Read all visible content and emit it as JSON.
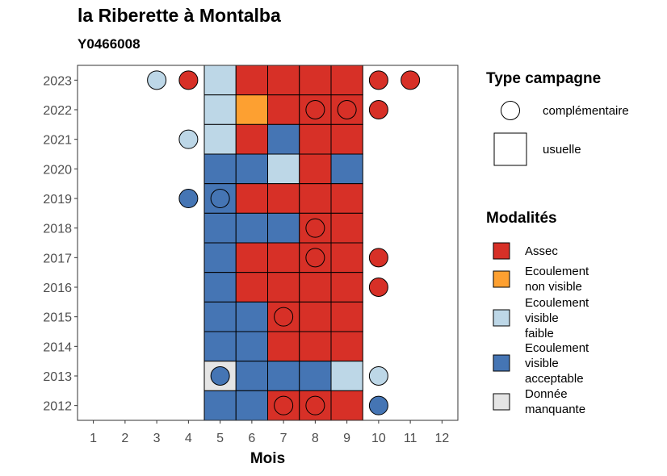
{
  "chart_data": {
    "type": "heatmap",
    "title": "la Riberette à Montalba",
    "subtitle": "Y0466008",
    "xlabel": "Mois",
    "ylabel": "",
    "x_ticks": [
      "1",
      "2",
      "3",
      "4",
      "5",
      "6",
      "7",
      "8",
      "9",
      "10",
      "11",
      "12"
    ],
    "y_ticks": [
      "2023",
      "2022",
      "2021",
      "2020",
      "2019",
      "2018",
      "2017",
      "2016",
      "2015",
      "2014",
      "2013",
      "2012"
    ],
    "xlim": [
      0.5,
      12.5
    ],
    "ylim": [
      2011.5,
      2023.5
    ],
    "legend_campagne": {
      "title": "Type campagne",
      "items": [
        {
          "key": "complementaire",
          "label": "complémentaire",
          "shape": "circle"
        },
        {
          "key": "usuelle",
          "label": "usuelle",
          "shape": "square"
        }
      ]
    },
    "legend_modalites": {
      "title": "Modalités",
      "items": [
        {
          "key": "assec",
          "lines": [
            "Assec"
          ],
          "color": "#D73027"
        },
        {
          "key": "ecoulement_non_visible",
          "lines": [
            "Ecoulement",
            "non visible"
          ],
          "color": "#FDA031"
        },
        {
          "key": "ecoulement_visible_faible",
          "lines": [
            "Ecoulement",
            "visible",
            "faible"
          ],
          "color": "#BDD7E7"
        },
        {
          "key": "ecoulement_visible_acceptable",
          "lines": [
            "Ecoulement",
            "visible",
            "acceptable"
          ],
          "color": "#4575B4"
        },
        {
          "key": "donnee_manquante",
          "lines": [
            "Donnée",
            "manquante"
          ],
          "color": "#E5E5E5"
        }
      ]
    },
    "usuelle_months": [
      5,
      9
    ],
    "usuelle": [
      {
        "year": 2023,
        "values": [
          "ecoulement_visible_faible",
          "assec",
          "assec",
          "assec",
          "assec"
        ]
      },
      {
        "year": 2022,
        "values": [
          "ecoulement_visible_faible",
          "ecoulement_non_visible",
          "assec",
          "assec",
          "assec"
        ]
      },
      {
        "year": 2021,
        "values": [
          "ecoulement_visible_faible",
          "assec",
          "ecoulement_visible_acceptable",
          "assec",
          "assec"
        ]
      },
      {
        "year": 2020,
        "values": [
          "ecoulement_visible_acceptable",
          "ecoulement_visible_acceptable",
          "ecoulement_visible_faible",
          "assec",
          "ecoulement_visible_acceptable"
        ]
      },
      {
        "year": 2019,
        "values": [
          "ecoulement_visible_acceptable",
          "assec",
          "assec",
          "assec",
          "assec"
        ]
      },
      {
        "year": 2018,
        "values": [
          "ecoulement_visible_acceptable",
          "ecoulement_visible_acceptable",
          "ecoulement_visible_acceptable",
          "assec",
          "assec"
        ]
      },
      {
        "year": 2017,
        "values": [
          "ecoulement_visible_acceptable",
          "assec",
          "assec",
          "assec",
          "assec"
        ]
      },
      {
        "year": 2016,
        "values": [
          "ecoulement_visible_acceptable",
          "assec",
          "assec",
          "assec",
          "assec"
        ]
      },
      {
        "year": 2015,
        "values": [
          "ecoulement_visible_acceptable",
          "ecoulement_visible_acceptable",
          "assec",
          "assec",
          "assec"
        ]
      },
      {
        "year": 2014,
        "values": [
          "ecoulement_visible_acceptable",
          "ecoulement_visible_acceptable",
          "assec",
          "assec",
          "assec"
        ]
      },
      {
        "year": 2013,
        "values": [
          "donnee_manquante",
          "ecoulement_visible_acceptable",
          "ecoulement_visible_acceptable",
          "ecoulement_visible_acceptable",
          "ecoulement_visible_faible"
        ]
      },
      {
        "year": 2012,
        "values": [
          "ecoulement_visible_acceptable",
          "ecoulement_visible_acceptable",
          "assec",
          "assec",
          "assec"
        ]
      }
    ],
    "complementaire": [
      {
        "year": 2023,
        "month": 3,
        "value": "ecoulement_visible_faible"
      },
      {
        "year": 2023,
        "month": 4,
        "value": "assec"
      },
      {
        "year": 2023,
        "month": 10,
        "value": "assec"
      },
      {
        "year": 2023,
        "month": 11,
        "value": "assec"
      },
      {
        "year": 2022,
        "month": 8,
        "value": "assec"
      },
      {
        "year": 2022,
        "month": 9,
        "value": "assec"
      },
      {
        "year": 2022,
        "month": 10,
        "value": "assec"
      },
      {
        "year": 2021,
        "month": 4,
        "value": "ecoulement_visible_faible"
      },
      {
        "year": 2019,
        "month": 4,
        "value": "ecoulement_visible_acceptable"
      },
      {
        "year": 2019,
        "month": 5,
        "value": "ecoulement_visible_acceptable"
      },
      {
        "year": 2018,
        "month": 8,
        "value": "assec"
      },
      {
        "year": 2017,
        "month": 8,
        "value": "assec"
      },
      {
        "year": 2017,
        "month": 10,
        "value": "assec"
      },
      {
        "year": 2016,
        "month": 10,
        "value": "assec"
      },
      {
        "year": 2015,
        "month": 7,
        "value": "assec"
      },
      {
        "year": 2013,
        "month": 5,
        "value": "ecoulement_visible_acceptable"
      },
      {
        "year": 2013,
        "month": 10,
        "value": "ecoulement_visible_faible"
      },
      {
        "year": 2012,
        "month": 7,
        "value": "assec"
      },
      {
        "year": 2012,
        "month": 8,
        "value": "assec"
      },
      {
        "year": 2012,
        "month": 10,
        "value": "ecoulement_visible_acceptable"
      }
    ]
  }
}
